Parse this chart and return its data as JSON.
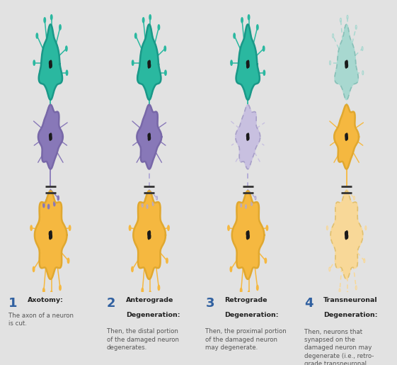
{
  "bg_color": "#e2e2e2",
  "panel_bg": "#d8d8d8",
  "teal": "#2ab8a0",
  "teal_light": "#85d5c8",
  "teal_faded": "#a8d8d0",
  "purple": "#8878b8",
  "purple_light": "#b0a8d5",
  "purple_faded": "#c8c0e0",
  "orange": "#f5b840",
  "orange_light": "#f8c870",
  "orange_faded": "#f8d898",
  "nucleus": "#222222",
  "cut_color": "#333333",
  "number_color": "#3060a0",
  "text_bold": "#222222",
  "text_normal": "#555555",
  "panels": [
    {
      "n": "1",
      "title": "Axotomy:",
      "title2": "",
      "body": "The axon of a neuron\nis cut.",
      "top_fill": "#2ab8a0",
      "top_edge": "#1a9888",
      "top_dashed": false,
      "mid_fill": "#8878b8",
      "mid_edge": "#7868a8",
      "mid_dashed": false,
      "bot_fill": "#f5b840",
      "bot_edge": "#e0a830",
      "bot_dashed": false,
      "axon1_color": "#2ab8a0",
      "axon1_dashed": false,
      "axon2_color": "#8878b8",
      "axon2_dashed": false,
      "dendrite2_color": "#8878b8",
      "dendrite2_dashed": false,
      "synapse_color": "#2ab8a0",
      "synapse_dashed": false
    },
    {
      "n": "2",
      "title": "Anterograde",
      "title2": "Degeneration:",
      "body": "Then, the distal portion\nof the damaged neuron\ndegenerates.",
      "top_fill": "#2ab8a0",
      "top_edge": "#1a9888",
      "top_dashed": false,
      "mid_fill": "#8878b8",
      "mid_edge": "#7868a8",
      "mid_dashed": false,
      "bot_fill": "#f5b840",
      "bot_edge": "#e0a830",
      "bot_dashed": false,
      "axon1_color": "#2ab8a0",
      "axon1_dashed": false,
      "axon2_color": "#b0a8d5",
      "axon2_dashed": true,
      "dendrite2_color": "#b0a8d5",
      "dendrite2_dashed": true,
      "synapse_color": "#2ab8a0",
      "synapse_dashed": false
    },
    {
      "n": "3",
      "title": "Retrograde",
      "title2": "Degeneration:",
      "body": "Then, the proximal portion\nof the damaged neuron\nmay degenerate.",
      "top_fill": "#2ab8a0",
      "top_edge": "#1a9888",
      "top_dashed": false,
      "mid_fill": "#c8c0e0",
      "mid_edge": "#a8a0c8",
      "mid_dashed": true,
      "bot_fill": "#f5b840",
      "bot_edge": "#e0a830",
      "bot_dashed": false,
      "axon1_color": "#2ab8a0",
      "axon1_dashed": false,
      "axon2_color": "#b0a8d5",
      "axon2_dashed": true,
      "dendrite2_color": "#b0a8d5",
      "dendrite2_dashed": true,
      "synapse_color": "#2ab8a0",
      "synapse_dashed": false
    },
    {
      "n": "4",
      "title": "Transneuronal",
      "title2": "Degeneration:",
      "body": "Then, neurons that\nsynapsed on the\ndamaged neuron may\ndegenerate (i.e., retro-\ngrade transneuronal\ndegeneration) and so too\nmay neurons on which the\ndamaged neuron synapsed\n(i.e., anterograde trans-\nneuronal degeneration).",
      "top_fill": "#a8d8d0",
      "top_edge": "#88c0b8",
      "top_dashed": true,
      "mid_fill": "#f5b840",
      "mid_edge": "#e0a830",
      "mid_dashed": false,
      "bot_fill": "#f8d898",
      "bot_edge": "#e0c070",
      "bot_dashed": true,
      "axon1_color": "#a8d8d0",
      "axon1_dashed": true,
      "axon2_color": "#f5b840",
      "axon2_dashed": false,
      "dendrite2_color": "#f8d898",
      "dendrite2_dashed": true,
      "synapse_color": "#a8d8d0",
      "synapse_dashed": true
    }
  ]
}
